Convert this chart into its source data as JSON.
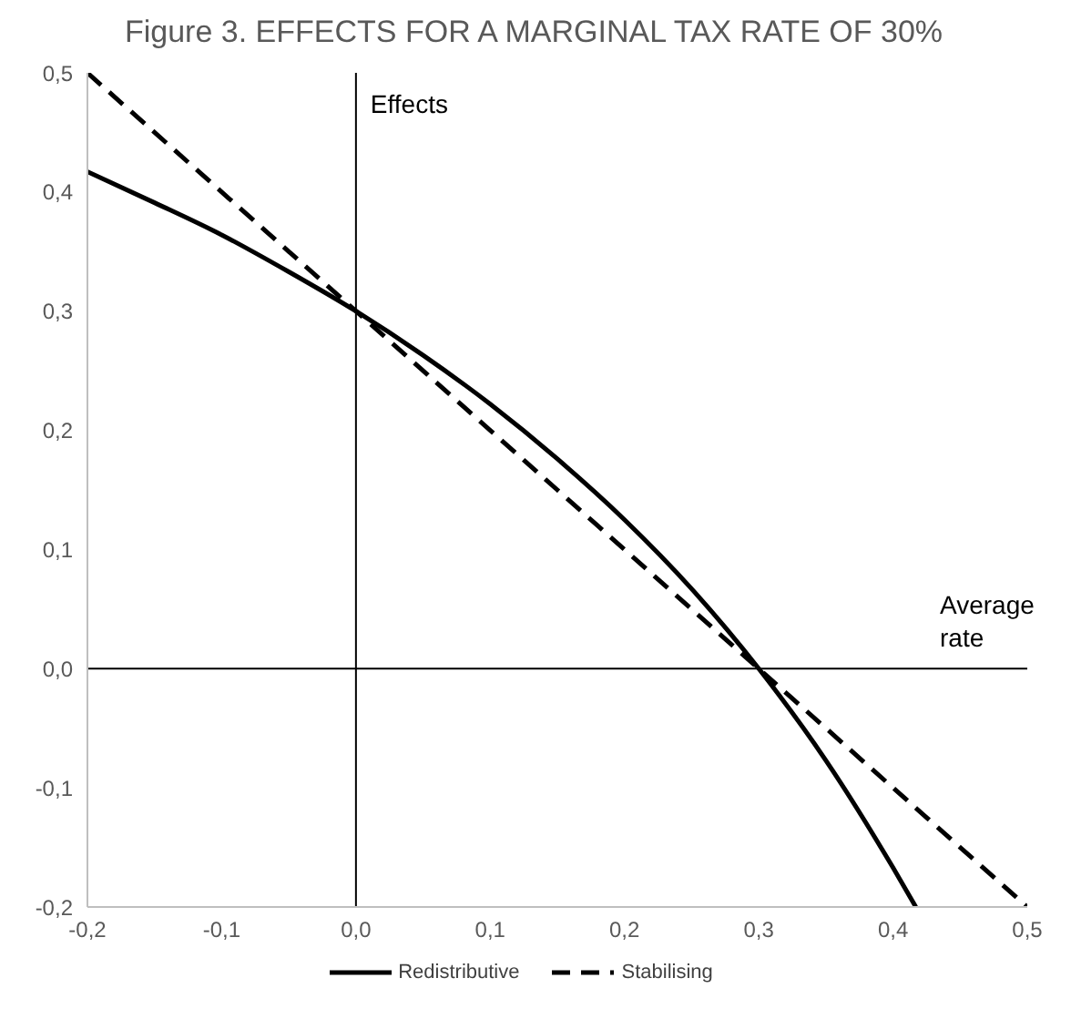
{
  "chart_data": {
    "type": "line",
    "title": "Figure 3. EFFECTS FOR A MARGINAL TAX RATE OF 30%",
    "x": [
      -0.2,
      -0.15,
      -0.1,
      -0.05,
      0,
      0.05,
      0.1,
      0.15,
      0.2,
      0.25,
      0.3,
      0.35,
      0.4,
      0.417,
      0.45,
      0.5
    ],
    "series": [
      {
        "name": "Redistributive",
        "color": "#000000",
        "line_style": "solid",
        "values": [
          0.417,
          0.391,
          0.364,
          0.333,
          0.3,
          0.263,
          0.222,
          0.176,
          0.125,
          0.067,
          0,
          -0.077,
          -0.167,
          -0.2,
          null,
          null
        ]
      },
      {
        "name": "Stabilising",
        "color": "#000000",
        "line_style": "dashed",
        "values": [
          0.5,
          0.45,
          0.4,
          0.35,
          0.3,
          0.25,
          0.2,
          0.15,
          0.1,
          0.05,
          0,
          -0.05,
          -0.1,
          -0.117,
          -0.15,
          -0.2
        ]
      }
    ],
    "xlim": [
      -0.2,
      0.5
    ],
    "ylim": [
      -0.2,
      0.5
    ],
    "xticks": [
      {
        "value": -0.2,
        "label": "-0,2"
      },
      {
        "value": -0.1,
        "label": "-0,1"
      },
      {
        "value": 0,
        "label": "0,0"
      },
      {
        "value": 0.1,
        "label": "0,1"
      },
      {
        "value": 0.2,
        "label": "0,2"
      },
      {
        "value": 0.3,
        "label": "0,3"
      },
      {
        "value": 0.4,
        "label": "0,4"
      },
      {
        "value": 0.5,
        "label": "0,5"
      }
    ],
    "yticks": [
      {
        "value": -0.2,
        "label": "-0,2"
      },
      {
        "value": -0.1,
        "label": "-0,1"
      },
      {
        "value": 0,
        "label": "0,0"
      },
      {
        "value": 0.1,
        "label": "0,1"
      },
      {
        "value": 0.2,
        "label": "0,2"
      },
      {
        "value": 0.3,
        "label": "0,3"
      },
      {
        "value": 0.4,
        "label": "0,4"
      },
      {
        "value": 0.5,
        "label": "0,5"
      }
    ],
    "ref_lines": [
      {
        "axis": "x",
        "value": 0,
        "label": "Effects",
        "color": "#000000"
      },
      {
        "axis": "y",
        "value": 0,
        "label": "Average rate",
        "color": "#000000"
      }
    ],
    "grid": false,
    "legend": "bottom",
    "marker": "none"
  }
}
